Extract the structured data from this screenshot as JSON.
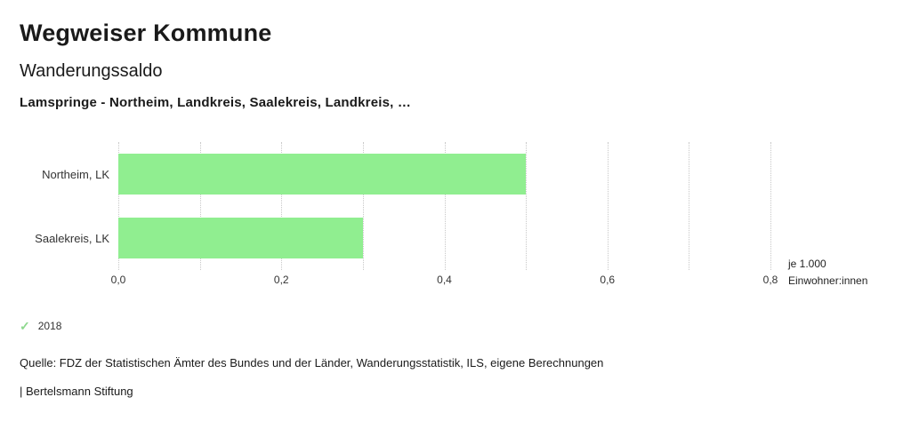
{
  "header": {
    "title": "Wegweiser Kommune",
    "subtitle": "Wanderungssaldo",
    "selection": "Lamspringe - Northeim, Landkreis, Saalekreis, Landkreis, …"
  },
  "chart_data": {
    "type": "bar",
    "orientation": "horizontal",
    "title": "Wanderungssaldo",
    "categories": [
      "Northeim, LK",
      "Saalekreis, LK"
    ],
    "values": [
      0.5,
      0.3
    ],
    "series": [
      {
        "name": "2018",
        "values": [
          0.5,
          0.3
        ]
      }
    ],
    "xlabel": "je 1.000 Einwohner:innen",
    "unit_lines": [
      "je 1.000",
      "Einwohner:innen"
    ],
    "xlim": [
      0.0,
      0.8
    ],
    "xticks": [
      "0,0",
      "0,2",
      "0,4",
      "0,6",
      "0,8"
    ],
    "grid_step": 0.1,
    "grid": "dotted-vertical",
    "bar_color": "#90ee90",
    "legend_position": "bottom-left"
  },
  "legend": {
    "check_icon": "✓",
    "check_color": "#8ed88e",
    "label": "2018"
  },
  "footer": {
    "source": "Quelle: FDZ der Statistischen Ämter des Bundes und der Länder, Wanderungsstatistik, ILS, eigene Berechnungen",
    "branding": "| Bertelsmann Stiftung"
  }
}
